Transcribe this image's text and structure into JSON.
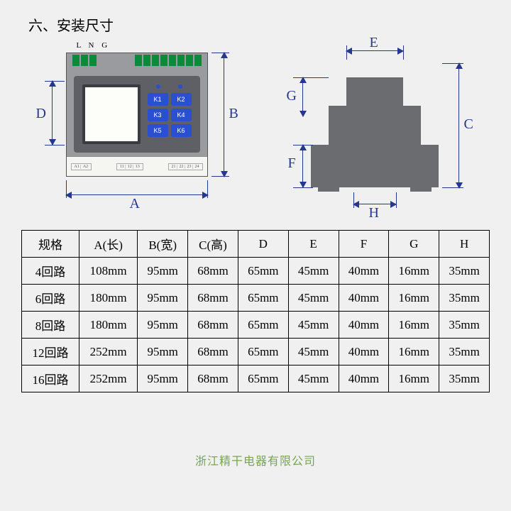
{
  "title": "六、安装尺寸",
  "lng_label": "L N G",
  "buttons": [
    "K1",
    "K2",
    "K3",
    "K4",
    "K5",
    "K6"
  ],
  "dimensions_front": {
    "A": "A",
    "B": "B",
    "D": "D"
  },
  "dimensions_side": {
    "C": "C",
    "E": "E",
    "F": "F",
    "G": "G",
    "H": "H"
  },
  "colors": {
    "body": "#9a9b9f",
    "panel": "#5f6066",
    "screen": "#fdfef9",
    "terminal": "#0b8a3a",
    "button": "#2a4fd0",
    "side": "#6b6c70",
    "dim": "#26378f",
    "border": "#000"
  },
  "table": {
    "headers": [
      "规格",
      "A(长)",
      "B(宽)",
      "C(高)",
      "D",
      "E",
      "F",
      "G",
      "H"
    ],
    "rows": [
      [
        "4回路",
        "108mm",
        "95mm",
        "68mm",
        "65mm",
        "45mm",
        "40mm",
        "16mm",
        "35mm"
      ],
      [
        "6回路",
        "180mm",
        "95mm",
        "68mm",
        "65mm",
        "45mm",
        "40mm",
        "16mm",
        "35mm"
      ],
      [
        "8回路",
        "180mm",
        "95mm",
        "68mm",
        "65mm",
        "45mm",
        "40mm",
        "16mm",
        "35mm"
      ],
      [
        "12回路",
        "252mm",
        "95mm",
        "68mm",
        "65mm",
        "45mm",
        "40mm",
        "16mm",
        "35mm"
      ],
      [
        "16回路",
        "252mm",
        "95mm",
        "68mm",
        "65mm",
        "45mm",
        "40mm",
        "16mm",
        "35mm"
      ]
    ]
  },
  "watermark": "浙江精干电器有限公司"
}
